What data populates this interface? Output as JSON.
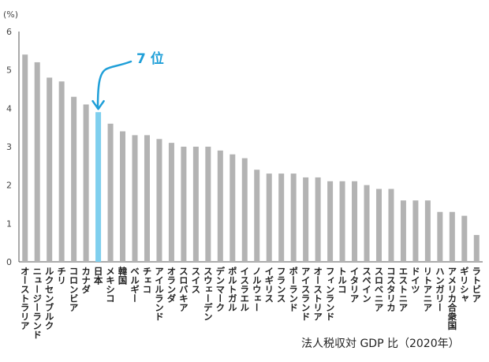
{
  "chart_data": {
    "type": "bar",
    "unit_label": "(%)",
    "title": "",
    "xlabel": "",
    "ylabel": "",
    "note": "法人税収対 GDP 比（2020年）",
    "ylim": [
      0,
      6
    ],
    "yticks": [
      0,
      1,
      2,
      3,
      4,
      5,
      6
    ],
    "grid": false,
    "bar_color": "#b3b3b3",
    "highlight_color": "#7fcfee",
    "annotation_color": "#1f9fd8",
    "highlight_index": 6,
    "annotation": "7 位",
    "categories": [
      "オーストラリア",
      "ニュージーランド",
      "ルクセンブルク",
      "チリ",
      "コロンビア",
      "カナダ",
      "日本",
      "メキシコ",
      "韓国",
      "ベルギー",
      "チェコ",
      "アイルランド",
      "オランダ",
      "スロバキア",
      "スイス",
      "スウェーデン",
      "デンマーク",
      "ポルトガル",
      "イスラエル",
      "ノルウェー",
      "イギリス",
      "フランス",
      "ポーランド",
      "アイスランド",
      "オーストリア",
      "フィンランド",
      "トルコ",
      "イタリア",
      "スペイン",
      "スロベニア",
      "コスタリカ",
      "エストニア",
      "ドイツ",
      "リトアニア",
      "ハンガリー",
      "アメリカ合衆国",
      "ギリシャ",
      "ラトビア"
    ],
    "values": [
      5.4,
      5.2,
      4.8,
      4.7,
      4.3,
      4.1,
      3.9,
      3.6,
      3.4,
      3.3,
      3.3,
      3.2,
      3.1,
      3.0,
      3.0,
      3.0,
      2.9,
      2.8,
      2.7,
      2.4,
      2.3,
      2.3,
      2.3,
      2.2,
      2.2,
      2.1,
      2.1,
      2.1,
      2.0,
      1.9,
      1.9,
      1.6,
      1.6,
      1.6,
      1.3,
      1.3,
      1.2,
      0.7
    ]
  }
}
